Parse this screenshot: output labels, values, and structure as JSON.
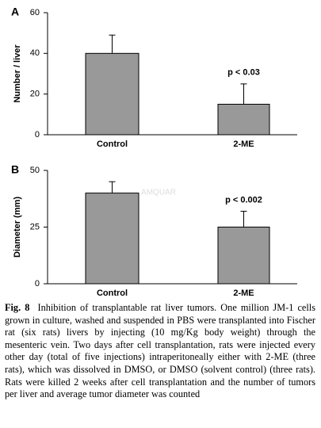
{
  "chart_data": [
    {
      "type": "bar",
      "panel": "A",
      "y_label": "Number / liver",
      "categories": [
        "Control",
        "2-ME"
      ],
      "values": [
        40,
        15
      ],
      "errors": [
        9,
        10
      ],
      "color": "#999999",
      "ylim": [
        0,
        60
      ],
      "yticks": [
        0,
        20,
        40,
        60
      ],
      "annotation": "p < 0.03"
    },
    {
      "type": "bar",
      "panel": "B",
      "y_label": "Diameter (mm)",
      "categories": [
        "Control",
        "2-ME"
      ],
      "values": [
        40,
        25
      ],
      "errors": [
        5,
        7
      ],
      "color": "#999999",
      "ylim": [
        0,
        50
      ],
      "yticks": [
        0,
        25,
        50
      ],
      "annotation": "p < 0.002"
    }
  ],
  "watermark": "AMQUAR",
  "caption": {
    "label": "Fig. 8",
    "text": "Inhibition of transplantable rat liver tumors. One million JM-1 cells grown in culture, washed and suspended in PBS were transplanted into Fischer rat (six rats) livers by injecting (10 mg/Kg body weight) through the mesenteric vein. Two days after cell transplantation, rats were injected every other day (total of five injections) intraperitoneally either with 2-ME (three rats), which was dissolved in DMSO, or DMSO (solvent control) (three rats). Rats were killed 2 weeks after cell transplantation and the number of tumors per liver and average tumor diameter was counted"
  }
}
